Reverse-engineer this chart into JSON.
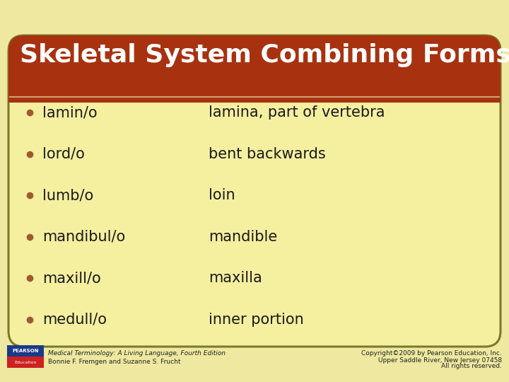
{
  "title": "Skeletal System Combining Forms",
  "title_color": "#FFFFFF",
  "title_bg_color": "#A83210",
  "background_color": "#F5EFA0",
  "outer_bg_color": "#EEE8A0",
  "border_color": "#7A7A2A",
  "bullet_color": "#A05830",
  "text_color": "#1A1A1A",
  "terms": [
    "lamin/o",
    "lord/o",
    "lumb/o",
    "mandibul/o",
    "maxill/o",
    "medull/o"
  ],
  "definitions": [
    "lamina, part of vertebra",
    "bent backwards",
    "loin",
    "mandible",
    "maxilla",
    "inner portion"
  ],
  "footer_left_line1": "Medical Terminology: A Living Language, Fourth Edition",
  "footer_left_line2": "Bonnie F. Fremgen and Suzanne S. Frucht",
  "footer_right_line1": "Copyright©2009 by Pearson Education, Inc.",
  "footer_right_line2": "Upper Saddle River, New Jersey 07458",
  "footer_right_line3": "All rights reserved.",
  "footer_color": "#222222",
  "font_size_title": 26,
  "font_size_body": 15,
  "font_size_footer": 6.5
}
